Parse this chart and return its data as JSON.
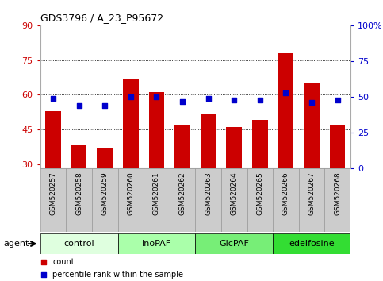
{
  "title": "GDS3796 / A_23_P95672",
  "samples": [
    "GSM520257",
    "GSM520258",
    "GSM520259",
    "GSM520260",
    "GSM520261",
    "GSM520262",
    "GSM520263",
    "GSM520264",
    "GSM520265",
    "GSM520266",
    "GSM520267",
    "GSM520268"
  ],
  "bar_values": [
    53,
    38,
    37,
    67,
    61,
    47,
    52,
    46,
    49,
    78,
    65,
    47
  ],
  "dot_values": [
    49,
    44,
    44,
    50,
    50,
    47,
    49,
    48,
    48,
    53,
    46,
    48
  ],
  "bar_color": "#cc0000",
  "dot_color": "#0000cc",
  "ylim_left": [
    28,
    90
  ],
  "ylim_right": [
    0,
    100
  ],
  "yticks_left": [
    30,
    45,
    60,
    75,
    90
  ],
  "yticks_right": [
    0,
    25,
    50,
    75,
    100
  ],
  "yticklabels_right": [
    "0",
    "25",
    "50",
    "75",
    "100%"
  ],
  "groups": [
    {
      "label": "control",
      "start": 0,
      "end": 3,
      "color": "#dfffdf"
    },
    {
      "label": "InoPAF",
      "start": 3,
      "end": 6,
      "color": "#aaffaa"
    },
    {
      "label": "GlcPAF",
      "start": 6,
      "end": 9,
      "color": "#77ee77"
    },
    {
      "label": "edelfosine",
      "start": 9,
      "end": 12,
      "color": "#33dd33"
    }
  ],
  "xtick_bg_color": "#cccccc",
  "xtick_border_color": "#999999",
  "legend_count_color": "#cc0000",
  "legend_dot_color": "#0000cc",
  "agent_label": "agent",
  "grid_lines": [
    45,
    60,
    75
  ],
  "bar_width": 0.6
}
